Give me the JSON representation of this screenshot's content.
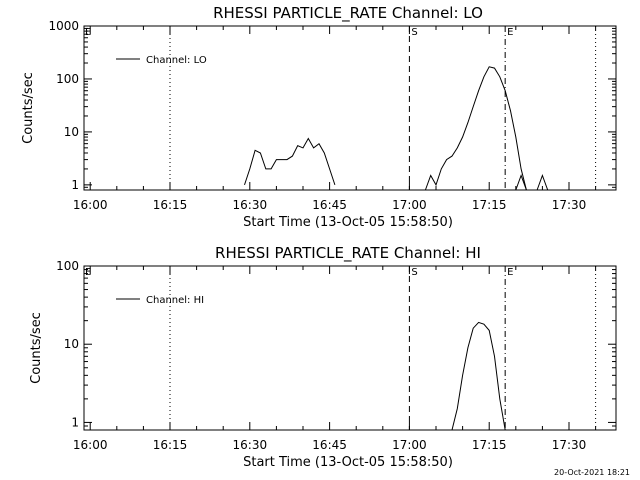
{
  "footer": {
    "timestamp": "20-Oct-2021 18:21"
  },
  "chart_data": [
    {
      "type": "line",
      "title": "RHESSI PARTICLE_RATE Channel: LO",
      "xlabel": "Start Time (13-Oct-05 15:58:50)",
      "ylabel": "Counts/sec",
      "y_scale": "log",
      "xlim": [
        "15:58:50",
        "17:38:50"
      ],
      "ylim": [
        0.8,
        1000
      ],
      "x_ticks": [
        "16:00",
        "16:15",
        "16:30",
        "16:45",
        "17:00",
        "17:15",
        "17:30"
      ],
      "y_ticks": [
        "1",
        "10",
        "100",
        "1000"
      ],
      "legend": {
        "position": "top-left",
        "entries": [
          "Channel: LO"
        ]
      },
      "markers": [
        {
          "time": "16:15",
          "style": "dotted",
          "label": ""
        },
        {
          "time": "17:00",
          "style": "dashed",
          "label": "S"
        },
        {
          "time": "17:18",
          "style": "dash-dot",
          "label": "E"
        },
        {
          "time": "17:35",
          "style": "dotted",
          "label": ""
        }
      ],
      "corner_label": "E",
      "series": [
        {
          "name": "Channel: LO",
          "segments": [
            [
              [
                "16:29",
                1
              ],
              [
                "16:30",
                2
              ],
              [
                "16:31",
                4.5
              ],
              [
                "16:32",
                4
              ],
              [
                "16:33",
                2
              ],
              [
                "16:34",
                2
              ],
              [
                "16:35",
                3
              ],
              [
                "16:36",
                3
              ],
              [
                "16:37",
                3
              ],
              [
                "16:38",
                3.5
              ],
              [
                "16:39",
                5.5
              ],
              [
                "16:40",
                5
              ],
              [
                "16:41",
                7.5
              ],
              [
                "16:42",
                5
              ],
              [
                "16:43",
                6
              ],
              [
                "16:44",
                4
              ],
              [
                "16:45",
                2
              ],
              [
                "16:46",
                1
              ]
            ],
            [
              [
                "17:03",
                0.8
              ],
              [
                "17:04",
                1.5
              ],
              [
                "17:05",
                1
              ],
              [
                "17:06",
                2
              ],
              [
                "17:07",
                3
              ],
              [
                "17:08",
                3.5
              ],
              [
                "17:09",
                5
              ],
              [
                "17:10",
                8
              ],
              [
                "17:11",
                15
              ],
              [
                "17:12",
                30
              ],
              [
                "17:13",
                60
              ],
              [
                "17:14",
                110
              ],
              [
                "17:15",
                170
              ],
              [
                "17:16",
                160
              ],
              [
                "17:17",
                110
              ],
              [
                "17:18",
                60
              ],
              [
                "17:19",
                25
              ],
              [
                "17:20",
                8
              ],
              [
                "17:21",
                2
              ],
              [
                "17:22",
                0.8
              ]
            ],
            [
              [
                "17:20",
                0.8
              ],
              [
                "17:21",
                1.5
              ],
              [
                "17:22",
                0.8
              ]
            ],
            [
              [
                "17:24",
                0.8
              ],
              [
                "17:25",
                1.5
              ],
              [
                "17:26",
                0.8
              ]
            ]
          ]
        }
      ]
    },
    {
      "type": "line",
      "title": "RHESSI PARTICLE_RATE Channel: HI",
      "xlabel": "Start Time (13-Oct-05 15:58:50)",
      "ylabel": "Counts/sec",
      "y_scale": "log",
      "xlim": [
        "15:58:50",
        "17:38:50"
      ],
      "ylim": [
        0.8,
        100
      ],
      "x_ticks": [
        "16:00",
        "16:15",
        "16:30",
        "16:45",
        "17:00",
        "17:15",
        "17:30"
      ],
      "y_ticks": [
        "1",
        "10",
        "100"
      ],
      "legend": {
        "position": "top-left",
        "entries": [
          "Channel: HI"
        ]
      },
      "markers": [
        {
          "time": "16:15",
          "style": "dotted",
          "label": ""
        },
        {
          "time": "17:00",
          "style": "dashed",
          "label": "S"
        },
        {
          "time": "17:18",
          "style": "dash-dot",
          "label": "E"
        },
        {
          "time": "17:35",
          "style": "dotted",
          "label": ""
        }
      ],
      "corner_label": "E",
      "series": [
        {
          "name": "Channel: HI",
          "segments": [
            [
              [
                "17:08",
                0.8
              ],
              [
                "17:09",
                1.5
              ],
              [
                "17:10",
                4
              ],
              [
                "17:11",
                9
              ],
              [
                "17:12",
                16
              ],
              [
                "17:13",
                19
              ],
              [
                "17:14",
                18
              ],
              [
                "17:15",
                15
              ],
              [
                "17:16",
                7
              ],
              [
                "17:17",
                2
              ],
              [
                "17:18",
                0.8
              ]
            ]
          ]
        }
      ]
    }
  ]
}
